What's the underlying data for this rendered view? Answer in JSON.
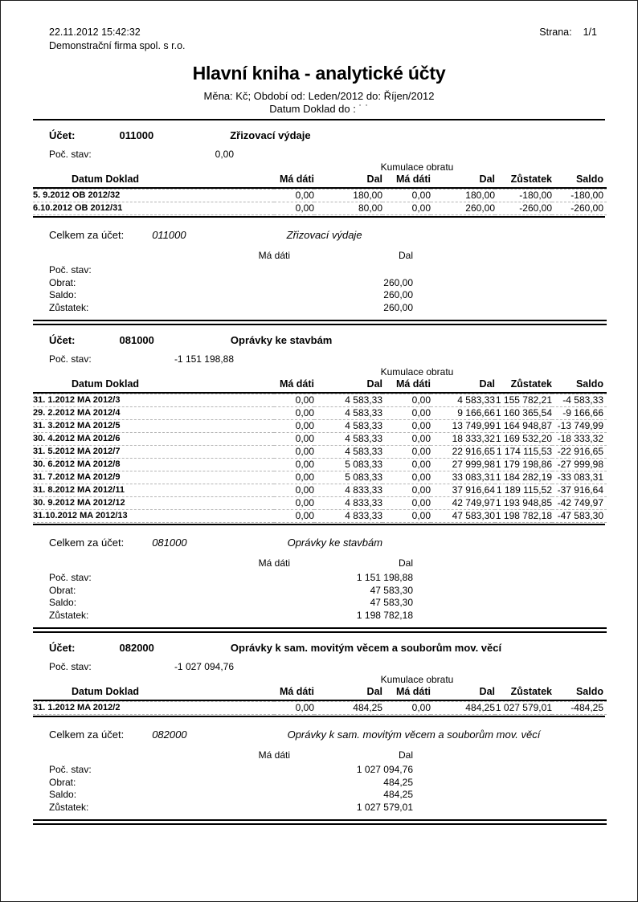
{
  "header": {
    "datetime": "22.11.2012 15:42:32",
    "company": "Demonstrační firma spol. s r.o.",
    "page_label": "Strana:",
    "page_value": "1/1",
    "title": "Hlavní kniha - analytické účty",
    "subtitle": "Měna: Kč; Období od: Leden/2012 do: Říjen/2012",
    "doc_date_label": "Datum Doklad do :",
    "doc_date_value": "˙ ˙"
  },
  "labels": {
    "account": "Účet:",
    "initial_balance": "Poč. stav:",
    "cumulation": "Kumulace obratu",
    "total_for_account": "Celkem za účet:",
    "row_initial": "Poč. stav:",
    "row_turnover": "Obrat:",
    "row_saldo": "Saldo:",
    "row_balance": "Zůstatek:",
    "madati": "Má dáti",
    "dal": "Dal"
  },
  "table": {
    "headers": {
      "doc": "Datum Doklad",
      "madati": "Má dáti",
      "dal": "Dal",
      "k_madati": "Má dáti",
      "k_dal": "Dal",
      "zustatek": "Zůstatek",
      "saldo": "Saldo"
    }
  },
  "accounts": [
    {
      "number": "011000",
      "name": "Zřizovací výdaje",
      "initial_balance": "0,00",
      "rows": [
        {
          "doc": "5. 9.2012 OB 2012/32",
          "md": "0,00",
          "dal": "180,00",
          "kmd": "0,00",
          "kdal": "180,00",
          "zust": "-180,00",
          "saldo": "-180,00"
        },
        {
          "doc": "6.10.2012 OB 2012/31",
          "md": "0,00",
          "dal": "80,00",
          "kmd": "0,00",
          "kdal": "260,00",
          "zust": "-260,00",
          "saldo": "-260,00"
        }
      ],
      "summary": {
        "poc_md": "",
        "poc_dal": "",
        "obrat_md": "",
        "obrat_dal": "260,00",
        "saldo_md": "",
        "saldo_dal": "260,00",
        "zust_md": "",
        "zust_dal": "260,00"
      }
    },
    {
      "number": "081000",
      "name": "Oprávky ke stavbám",
      "initial_balance": "-1 151 198,88",
      "rows": [
        {
          "doc": "31. 1.2012 MA 2012/3",
          "md": "0,00",
          "dal": "4 583,33",
          "kmd": "0,00",
          "kdal": "4 583,33",
          "zust": "1 155 782,21",
          "saldo": "-4 583,33"
        },
        {
          "doc": "29. 2.2012 MA 2012/4",
          "md": "0,00",
          "dal": "4 583,33",
          "kmd": "0,00",
          "kdal": "9 166,66",
          "zust": "1 160 365,54",
          "saldo": "-9 166,66"
        },
        {
          "doc": "31. 3.2012 MA 2012/5",
          "md": "0,00",
          "dal": "4 583,33",
          "kmd": "0,00",
          "kdal": "13 749,99",
          "zust": "1 164 948,87",
          "saldo": "-13 749,99"
        },
        {
          "doc": "30. 4.2012 MA 2012/6",
          "md": "0,00",
          "dal": "4 583,33",
          "kmd": "0,00",
          "kdal": "18 333,32",
          "zust": "1 169 532,20",
          "saldo": "-18 333,32"
        },
        {
          "doc": "31. 5.2012 MA 2012/7",
          "md": "0,00",
          "dal": "4 583,33",
          "kmd": "0,00",
          "kdal": "22 916,65",
          "zust": "1 174 115,53",
          "saldo": "-22 916,65"
        },
        {
          "doc": "30. 6.2012 MA 2012/8",
          "md": "0,00",
          "dal": "5 083,33",
          "kmd": "0,00",
          "kdal": "27 999,98",
          "zust": "1 179 198,86",
          "saldo": "-27 999,98"
        },
        {
          "doc": "31. 7.2012 MA 2012/9",
          "md": "0,00",
          "dal": "5 083,33",
          "kmd": "0,00",
          "kdal": "33 083,31",
          "zust": "1 184 282,19",
          "saldo": "-33 083,31"
        },
        {
          "doc": "31. 8.2012 MA 2012/11",
          "md": "0,00",
          "dal": "4 833,33",
          "kmd": "0,00",
          "kdal": "37 916,64",
          "zust": "1 189 115,52",
          "saldo": "-37 916,64"
        },
        {
          "doc": "30. 9.2012 MA 2012/12",
          "md": "0,00",
          "dal": "4 833,33",
          "kmd": "0,00",
          "kdal": "42 749,97",
          "zust": "1 193 948,85",
          "saldo": "-42 749,97"
        },
        {
          "doc": "31.10.2012 MA 2012/13",
          "md": "0,00",
          "dal": "4 833,33",
          "kmd": "0,00",
          "kdal": "47 583,30",
          "zust": "1 198 782,18",
          "saldo": "-47 583,30"
        }
      ],
      "summary": {
        "poc_md": "",
        "poc_dal": "1 151 198,88",
        "obrat_md": "",
        "obrat_dal": "47 583,30",
        "saldo_md": "",
        "saldo_dal": "47 583,30",
        "zust_md": "",
        "zust_dal": "1 198 782,18"
      }
    },
    {
      "number": "082000",
      "name": "Oprávky k sam. movitým věcem a souborům mov. věcí",
      "initial_balance": "-1 027 094,76",
      "rows": [
        {
          "doc": "31. 1.2012 MA 2012/2",
          "md": "0,00",
          "dal": "484,25",
          "kmd": "0,00",
          "kdal": "484,25",
          "zust": "1 027 579,01",
          "saldo": "-484,25"
        }
      ],
      "summary": {
        "poc_md": "",
        "poc_dal": "1 027 094,76",
        "obrat_md": "",
        "obrat_dal": "484,25",
        "saldo_md": "",
        "saldo_dal": "484,25",
        "zust_md": "",
        "zust_dal": "1 027 579,01"
      }
    }
  ]
}
